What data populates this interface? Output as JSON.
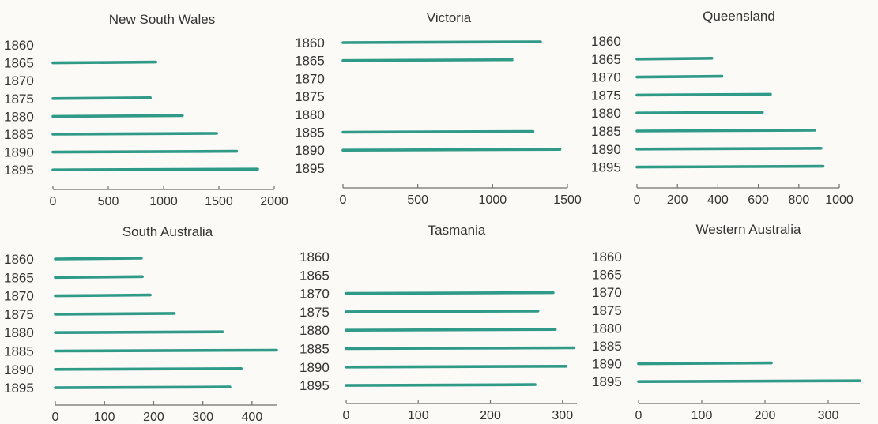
{
  "chart_data": [
    {
      "type": "bar",
      "orientation": "horizontal",
      "title": "New South Wales",
      "categories": [
        "1860",
        "1865",
        "1870",
        "1875",
        "1880",
        "1885",
        "1890",
        "1895"
      ],
      "values": [
        null,
        930,
        null,
        880,
        1170,
        1480,
        1660,
        1850
      ],
      "xlim": [
        0,
        2000
      ],
      "xticks": [
        "0",
        "500",
        "1000",
        "1500",
        "2000"
      ],
      "color": "#2f9a88"
    },
    {
      "type": "bar",
      "orientation": "horizontal",
      "title": "Victoria",
      "categories": [
        "1860",
        "1865",
        "1870",
        "1875",
        "1880",
        "1885",
        "1890",
        "1895"
      ],
      "values": [
        1320,
        1130,
        null,
        null,
        null,
        1270,
        1450,
        null
      ],
      "xlim": [
        0,
        1500
      ],
      "xticks": [
        "0",
        "500",
        "1000",
        "1500"
      ],
      "color": "#2f9a88"
    },
    {
      "type": "bar",
      "orientation": "horizontal",
      "title": "Queensland",
      "categories": [
        "1860",
        "1865",
        "1870",
        "1875",
        "1880",
        "1885",
        "1890",
        "1895"
      ],
      "values": [
        null,
        370,
        420,
        660,
        620,
        880,
        910,
        920
      ],
      "xlim": [
        0,
        1000
      ],
      "xticks": [
        "0",
        "200",
        "400",
        "600",
        "800",
        "1000"
      ],
      "color": "#2f9a88"
    },
    {
      "type": "bar",
      "orientation": "horizontal",
      "title": "South Australia",
      "categories": [
        "1860",
        "1865",
        "1870",
        "1875",
        "1880",
        "1885",
        "1890",
        "1895"
      ],
      "values": [
        175,
        177,
        193,
        242,
        340,
        450,
        378,
        355
      ],
      "xlim": [
        0,
        450
      ],
      "xticks": [
        "0",
        "100",
        "200",
        "300",
        "400"
      ],
      "color": "#2f9a88"
    },
    {
      "type": "bar",
      "orientation": "horizontal",
      "title": "Tasmania",
      "categories": [
        "1860",
        "1865",
        "1870",
        "1875",
        "1880",
        "1885",
        "1890",
        "1895"
      ],
      "values": [
        null,
        null,
        287,
        266,
        290,
        316,
        305,
        262
      ],
      "xlim": [
        0,
        320
      ],
      "xticks": [
        "0",
        "100",
        "200",
        "300"
      ],
      "color": "#2f9a88"
    },
    {
      "type": "bar",
      "orientation": "horizontal",
      "title": "Western Australia",
      "categories": [
        "1860",
        "1865",
        "1870",
        "1875",
        "1880",
        "1885",
        "1890",
        "1895"
      ],
      "values": [
        null,
        null,
        null,
        null,
        null,
        null,
        210,
        350
      ],
      "xlim": [
        0,
        350
      ],
      "xticks": [
        "0",
        "100",
        "200",
        "300"
      ],
      "color": "#2f9a88"
    }
  ]
}
